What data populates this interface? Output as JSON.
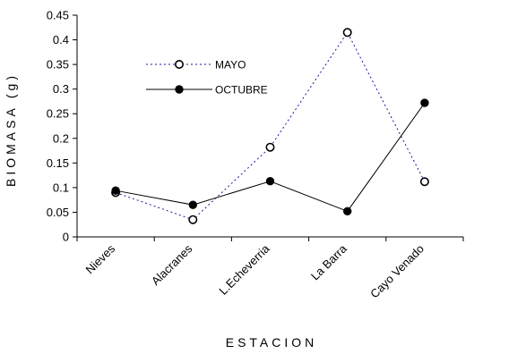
{
  "chart_data": {
    "type": "line",
    "categories": [
      "Nieves",
      "Alacranes",
      "L.Echeverria",
      "La Barra",
      "Cayo Venado"
    ],
    "series": [
      {
        "name": "MAYO",
        "values": [
          0.09,
          0.035,
          0.182,
          0.415,
          0.112
        ],
        "style": "dotted",
        "color": "#1a1aa6",
        "marker": "open-circle"
      },
      {
        "name": "OCTUBRE",
        "values": [
          0.094,
          0.065,
          0.113,
          0.052,
          0.272
        ],
        "style": "solid",
        "color": "#000000",
        "marker": "filled-circle"
      }
    ],
    "xlabel": "ESTACION",
    "ylabel": "BIOMASA (g)",
    "ylim": [
      0,
      0.45
    ],
    "yticks": [
      "0",
      "0.05",
      "0.1",
      "0.15",
      "0.2",
      "0.25",
      "0.3",
      "0.35",
      "0.4",
      "0.45"
    ],
    "grid": false,
    "legend": "top-left"
  }
}
